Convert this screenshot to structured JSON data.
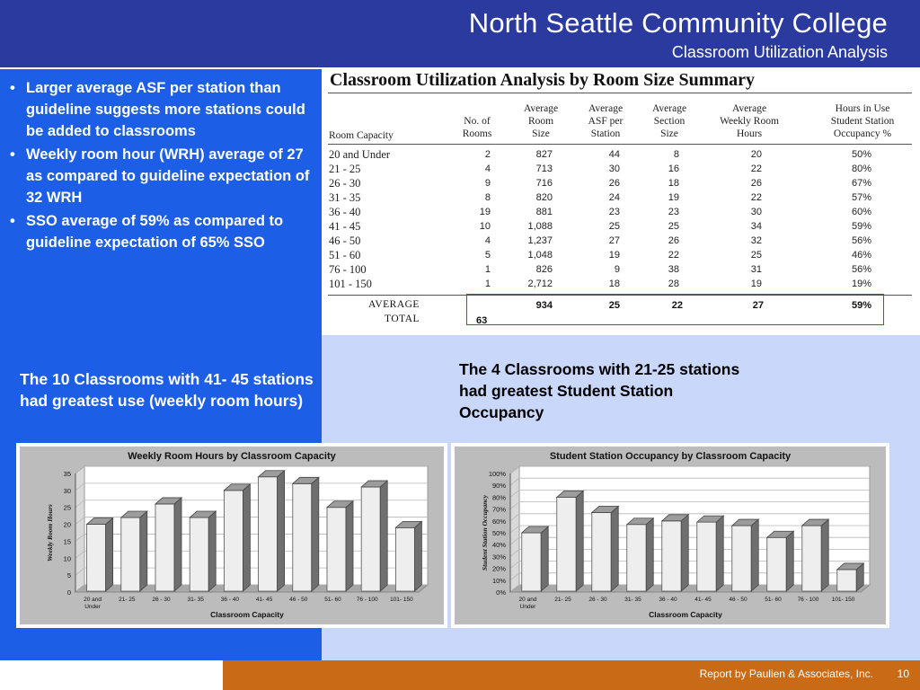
{
  "header": {
    "title": "North Seattle Community College",
    "subtitle": "Classroom Utilization Analysis"
  },
  "bullets": [
    "Larger average ASF per station than guideline suggests more stations could be added to classrooms",
    "Weekly room hour (WRH) average of 27 as compared to guideline expectation of 32 WRH",
    "SSO average of 59% as compared to guideline expectation of 65% SSO"
  ],
  "table": {
    "title": "Classroom Utilization Analysis by Room Size Summary",
    "headers": [
      "Room Capacity",
      "No. of\nRooms",
      "Average\nRoom\nSize",
      "Average\nASF per\nStation",
      "Average\nSection\nSize",
      "Average\nWeekly Room\nHours",
      "Hours in Use\nStudent Station\nOccupancy %"
    ],
    "rows": [
      [
        "20 and Under",
        "2",
        "827",
        "44",
        "8",
        "20",
        "50%"
      ],
      [
        "21 - 25",
        "4",
        "713",
        "30",
        "16",
        "22",
        "80%"
      ],
      [
        "26 - 30",
        "9",
        "716",
        "26",
        "18",
        "26",
        "67%"
      ],
      [
        "31 - 35",
        "8",
        "820",
        "24",
        "19",
        "22",
        "57%"
      ],
      [
        "36 - 40",
        "19",
        "881",
        "23",
        "23",
        "30",
        "60%"
      ],
      [
        "41 - 45",
        "10",
        "1,088",
        "25",
        "25",
        "34",
        "59%"
      ],
      [
        "46 - 50",
        "4",
        "1,237",
        "27",
        "26",
        "32",
        "56%"
      ],
      [
        "51 - 60",
        "5",
        "1,048",
        "19",
        "22",
        "25",
        "46%"
      ],
      [
        "76 - 100",
        "1",
        "826",
        "9",
        "38",
        "31",
        "56%"
      ],
      [
        "101 - 150",
        "1",
        "2,712",
        "18",
        "28",
        "19",
        "19%"
      ]
    ],
    "average": {
      "label": "AVERAGE",
      "room_size": "934",
      "asf": "25",
      "section": "22",
      "hours": "27",
      "sso": "59%"
    },
    "total": {
      "label": "TOTAL",
      "rooms": "63"
    }
  },
  "captions": {
    "left": "The 10 Classrooms with 41- 45 stations had greatest use (weekly room hours)",
    "right": "The 4 Classrooms with 21-25 stations had greatest Student Station Occupancy"
  },
  "chart_data": [
    {
      "type": "bar",
      "title": "Weekly Room Hours by Classroom Capacity",
      "xlabel": "Classroom Capacity",
      "ylabel": "Weekly Room Hours",
      "categories": [
        "20 and Under",
        "21- 25",
        "26 - 30",
        "31- 35",
        "36 - 40",
        "41- 45",
        "46 - 50",
        "51- 60",
        "76 - 100",
        "101- 150"
      ],
      "values": [
        20,
        22,
        26,
        22,
        30,
        34,
        32,
        25,
        31,
        19
      ],
      "ylim": [
        0,
        35
      ],
      "yticks": [
        "0",
        "5",
        "10",
        "15",
        "20",
        "25",
        "30",
        "35"
      ],
      "grid": true
    },
    {
      "type": "bar",
      "title": "Student Station Occupancy by Classroom Capacity",
      "xlabel": "Classroom Capacity",
      "ylabel": "Student Station Occupancy",
      "categories": [
        "20 and Under",
        "21- 25",
        "26 - 30",
        "31- 35",
        "36 - 40",
        "41- 45",
        "46 - 50",
        "51- 60",
        "76 - 100",
        "101- 150"
      ],
      "values": [
        50,
        80,
        67,
        57,
        60,
        59,
        56,
        46,
        56,
        19
      ],
      "ylim": [
        0,
        100
      ],
      "yticks": [
        "0%",
        "10%",
        "20%",
        "30%",
        "40%",
        "50%",
        "60%",
        "70%",
        "80%",
        "90%",
        "100%"
      ],
      "grid": true
    }
  ],
  "footer": {
    "credit": "Report by Paulien & Associates, Inc.",
    "page": "10"
  },
  "colors": {
    "header": "#2b3a9e",
    "left_panel": "#1c5ee6",
    "right_panel": "#c8d7fa",
    "footer": "#c96a16",
    "highlight_box": "#e02020"
  }
}
